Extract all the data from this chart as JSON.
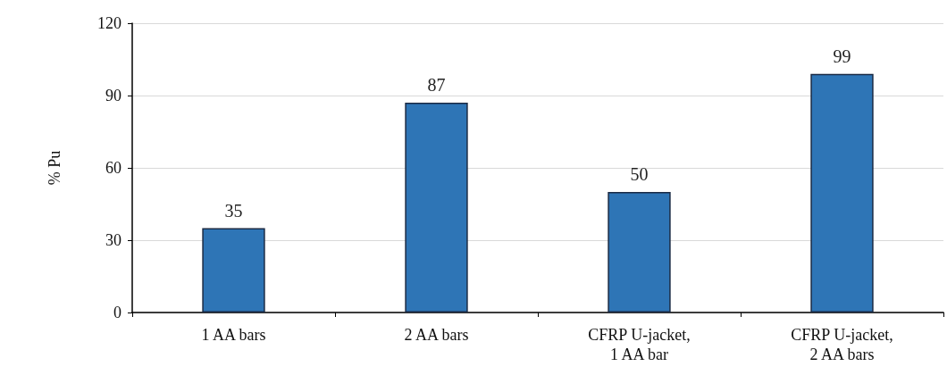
{
  "chart_data": {
    "type": "bar",
    "ylabel": "% Pu",
    "categories": [
      "1 AA bars",
      "2 AA bars",
      "CFRP U-jacket,\n1 AA bar",
      "CFRP U-jacket,\n2 AA bars"
    ],
    "values": [
      35,
      87,
      50,
      99
    ],
    "color": "#2e75b6",
    "ylim": [
      0,
      120
    ],
    "yticks": [
      0,
      30,
      60,
      90,
      120
    ],
    "grid": "y",
    "data_labels": true
  }
}
